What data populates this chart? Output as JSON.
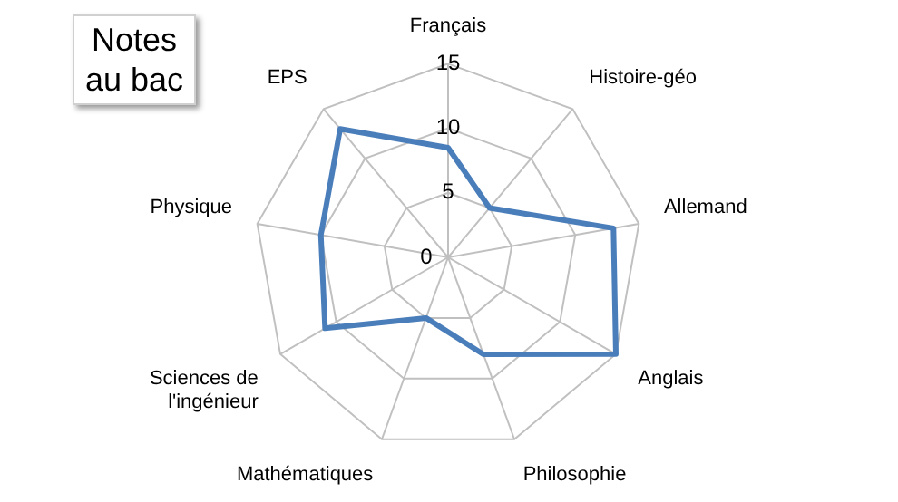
{
  "chart_data": {
    "type": "radar",
    "title": "Notes au bac",
    "categories": [
      "Français",
      "Histoire-géo",
      "Allemand",
      "Anglais",
      "Philosophie",
      "Mathématiques",
      "Sciences de l'ingénieur",
      "Physique",
      "EPS"
    ],
    "series": [
      {
        "color": "#4a7ebb",
        "values": [
          8.5,
          5,
          13,
          15,
          8,
          5,
          11,
          10,
          13
        ]
      }
    ],
    "ylim": [
      0,
      15
    ],
    "yticks": [
      0,
      5,
      10,
      15
    ],
    "grid": true,
    "legend": false,
    "marker": "none"
  }
}
